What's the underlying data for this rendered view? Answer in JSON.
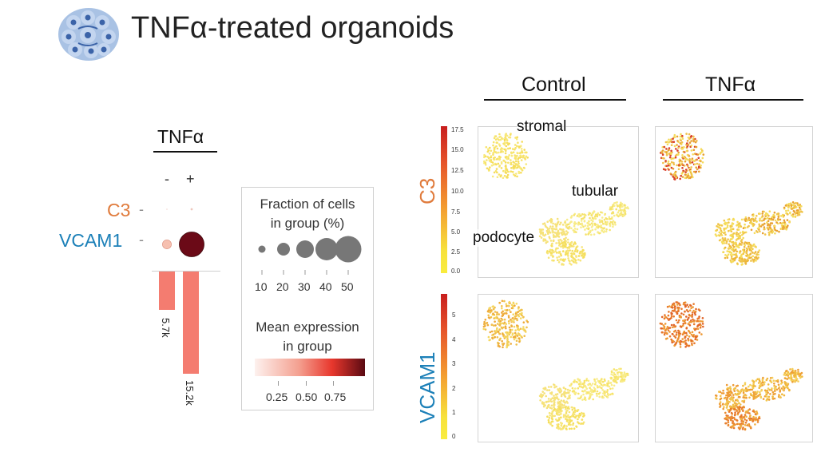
{
  "title": "TNFα-treated organoids",
  "dotplot": {
    "group_label": "TNFα",
    "conditions": [
      "-",
      "+"
    ],
    "genes": [
      {
        "name": "C3",
        "color": "#e07b3c"
      },
      {
        "name": "VCAM1",
        "color": "#1c80b8"
      }
    ],
    "cell_counts": [
      "5.7k",
      "15.2k"
    ],
    "cell_count_values": [
      5700,
      15200
    ],
    "dots": [
      {
        "gene": "C3",
        "condition": "-",
        "fraction_pct": 1,
        "expression": 0.02
      },
      {
        "gene": "C3",
        "condition": "+",
        "fraction_pct": 3,
        "expression": 0.05
      },
      {
        "gene": "VCAM1",
        "condition": "-",
        "fraction_pct": 11,
        "expression": 0.25
      },
      {
        "gene": "VCAM1",
        "condition": "+",
        "fraction_pct": 50,
        "expression": 0.97
      }
    ]
  },
  "legend": {
    "size_title_line1": "Fraction of cells",
    "size_title_line2": "in group (%)",
    "size_ticks": [
      "10",
      "20",
      "30",
      "40",
      "50"
    ],
    "color_title_line1": "Mean expression",
    "color_title_line2": "in group",
    "color_ticks": [
      "0.25",
      "0.50",
      "0.75"
    ],
    "colors": {
      "low": "#fbe9e4",
      "mid": "#e8372d",
      "high": "#5a0a12"
    }
  },
  "umap": {
    "columns": [
      "Control",
      "TNFα"
    ],
    "rows": [
      {
        "gene": "C3",
        "color": "#e07b3c",
        "scale_ticks": [
          "17.5",
          "15.0",
          "12.5",
          "10.0",
          "7.5",
          "5.0",
          "2.5",
          "0.0"
        ]
      },
      {
        "gene": "VCAM1",
        "color": "#1c80b8",
        "scale_ticks": [
          "5",
          "4",
          "3",
          "2",
          "1",
          "0"
        ]
      }
    ],
    "cluster_labels": {
      "stromal": "stromal",
      "tubular": "tubular",
      "podocyte": "podocyte"
    }
  }
}
